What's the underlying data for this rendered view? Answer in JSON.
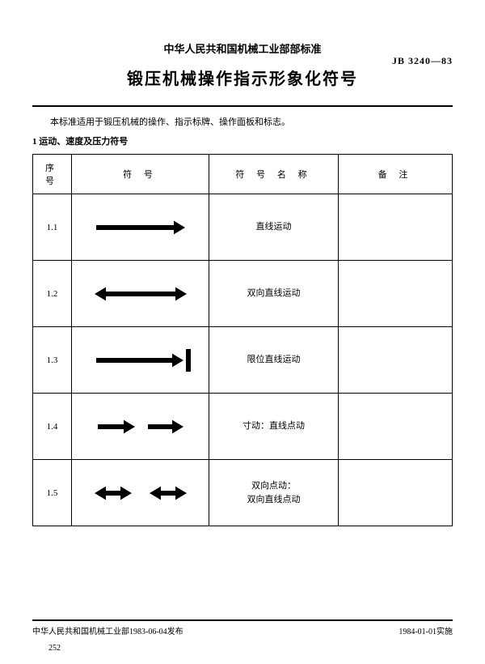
{
  "header": {
    "pre_title": "中华人民共和国机械工业部部标准",
    "standard_code": "JB 3240—83",
    "title": "锻压机械操作指示形象化符号"
  },
  "intro_text": "本标准适用于锻压机械的操作、指示标牌、操作面板和标志。",
  "section1_heading": "1 运动、速度及压力符号",
  "table": {
    "columns": [
      "序 号",
      "符  号",
      "符 号 名 称",
      "备  注"
    ],
    "rows": [
      {
        "idx": "1.1",
        "symbol": "arrow-right",
        "name": "直线运动",
        "note": ""
      },
      {
        "idx": "1.2",
        "symbol": "arrow-double",
        "name": "双向直线运动",
        "note": ""
      },
      {
        "idx": "1.3",
        "symbol": "arrow-limit",
        "name": "限位直线运动",
        "note": ""
      },
      {
        "idx": "1.4",
        "symbol": "arrow-jog",
        "name": "寸动：直线点动",
        "note": ""
      },
      {
        "idx": "1.5",
        "symbol": "arrow-jog-double",
        "name": "双向点动：\n双向直线点动",
        "note": ""
      }
    ]
  },
  "footer": {
    "left": "中华人民共和国机械工业部1983-06-04发布",
    "right": "1984-01-01实施",
    "page": "252"
  },
  "style": {
    "stroke": "#000000",
    "line_width": 6,
    "arrow_head": 14
  }
}
